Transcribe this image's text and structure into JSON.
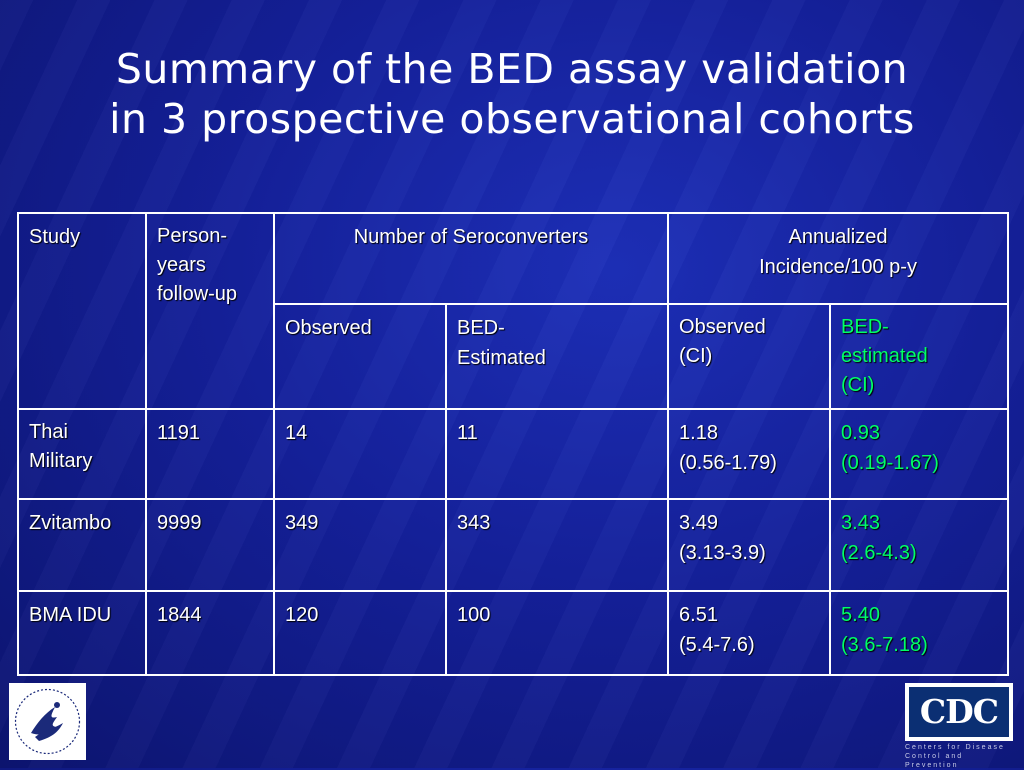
{
  "slide": {
    "title_line1": "Summary of the BED assay validation",
    "title_line2": "in 3 prospective observational cohorts"
  },
  "table": {
    "headers": {
      "study": "Study",
      "person_years": [
        "Person-",
        "years",
        "follow-up"
      ],
      "seroconverters": "Number of Seroconverters",
      "incidence": [
        "Annualized",
        "Incidence/100 p-y"
      ],
      "observed": "Observed",
      "bed_estimated": [
        "BED-",
        "Estimated"
      ],
      "observed_ci": [
        "Observed",
        "(CI)"
      ],
      "bed_estimated_ci": [
        "BED-",
        "estimated",
        "(CI)"
      ]
    },
    "rows": [
      {
        "study": [
          "Thai",
          "Military"
        ],
        "person_years": "1191",
        "observed": "14",
        "bed_estimated": "11",
        "obs_inc": "1.18",
        "obs_ci": "(0.56-1.79)",
        "bed_inc": "0.93",
        "bed_ci": "(0.19-1.67)"
      },
      {
        "study": [
          "Zvitambo"
        ],
        "person_years": "9999",
        "observed": "349",
        "bed_estimated": "343",
        "obs_inc": "3.49",
        "obs_ci": "(3.13-3.9)",
        "bed_inc": "3.43",
        "bed_ci": "(2.6-4.3)"
      },
      {
        "study": [
          "BMA IDU"
        ],
        "person_years": "1844",
        "observed": "120",
        "bed_estimated": "100",
        "obs_inc": "6.51",
        "obs_ci": "(5.4-7.6)",
        "bed_inc": "5.40",
        "bed_ci": "(3.6-7.18)"
      }
    ]
  },
  "logos": {
    "cdc_text": "CDC",
    "cdc_subtitle": "Centers for Disease Control and Prevention",
    "hhs_icon": "hhs-eagle-seal-icon"
  },
  "colors": {
    "background": "#14209a",
    "bed_highlight": "#00ff66"
  }
}
